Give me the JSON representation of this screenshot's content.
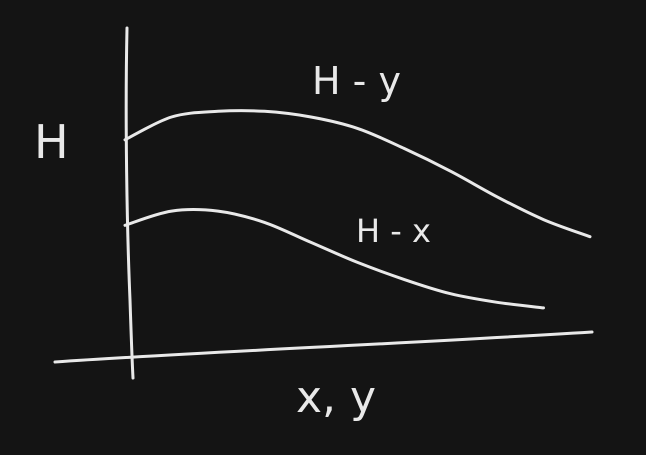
{
  "chart_data": {
    "type": "line",
    "title": "",
    "xlabel": "x, y",
    "ylabel": "H",
    "grid": false,
    "legend": "none",
    "series": [
      {
        "name": "H - y",
        "x": [
          0,
          0.1,
          0.2,
          0.3,
          0.4,
          0.5,
          0.6,
          0.7,
          0.8,
          0.9,
          1.0
        ],
        "values": [
          0.72,
          0.8,
          0.82,
          0.82,
          0.8,
          0.76,
          0.69,
          0.61,
          0.52,
          0.44,
          0.38
        ]
      },
      {
        "name": "H - x",
        "x": [
          0,
          0.1,
          0.2,
          0.3,
          0.4,
          0.5,
          0.6,
          0.7,
          0.8,
          0.9
        ],
        "values": [
          0.42,
          0.47,
          0.47,
          0.43,
          0.36,
          0.29,
          0.23,
          0.18,
          0.15,
          0.13
        ]
      }
    ],
    "colors": {
      "background": "#141414",
      "ink": "#e9e9e9"
    }
  }
}
